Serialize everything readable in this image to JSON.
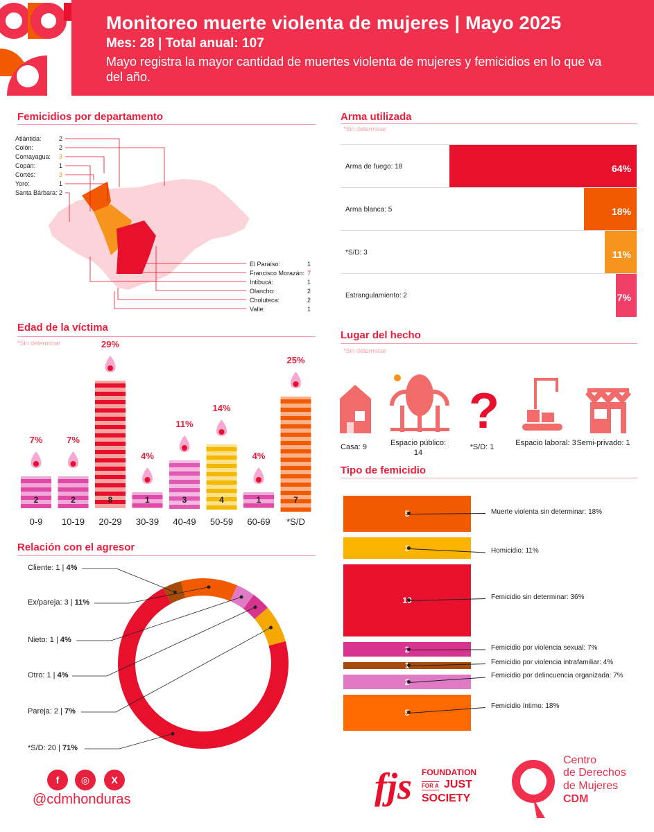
{
  "header": {
    "title": "Monitoreo muerte violenta de mujeres | Mayo 2025",
    "subtitle": "Mes: 28 | Total anual: 107",
    "description": "Mayo registra la mayor cantidad de muertes violenta de mujeres y femicidios en lo que va del año."
  },
  "colors": {
    "brand_red": "#f0304d",
    "red": "#e8112d",
    "orange_dark": "#f25a00",
    "orange": "#f7941d",
    "pink": "#f0406a"
  },
  "sections": {
    "departamento": "Femicidios por departamento",
    "arma": "Arma utilizada",
    "edad": "Edad de la víctima",
    "lugar": "Lugar del hecho",
    "tipo": "Tipo de femicidio",
    "relacion": "Relación con el agresor",
    "sin_determinar": "*Sin determinar"
  },
  "departamentos_left": [
    {
      "name": "Atlántida:",
      "value": "2"
    },
    {
      "name": "Colón:",
      "value": "2"
    },
    {
      "name": "Comayagua:",
      "value": "3"
    },
    {
      "name": "Copán:",
      "value": "1"
    },
    {
      "name": "Cortés:",
      "value": "3"
    },
    {
      "name": "Yoro:",
      "value": "1"
    },
    {
      "name": "Santa Bárbara:",
      "value": "2"
    }
  ],
  "departamentos_right": [
    {
      "name": "El Paraíso:",
      "value": "1"
    },
    {
      "name": "Francisco Morazán:",
      "value": "7"
    },
    {
      "name": "Intibucá:",
      "value": "1"
    },
    {
      "name": "Olancho:",
      "value": "2"
    },
    {
      "name": "Choluteca:",
      "value": "2"
    },
    {
      "name": "Valle:",
      "value": "1"
    }
  ],
  "arma": [
    {
      "label": "Arma de fuego: 18",
      "pct": "64%",
      "value": 64,
      "color": "#e8112d"
    },
    {
      "label": "Arma blanca: 5",
      "pct": "18%",
      "value": 18,
      "color": "#f25a00"
    },
    {
      "label": "*S/D: 3",
      "pct": "11%",
      "value": 11,
      "color": "#f7941d"
    },
    {
      "label": "Estrangulamiento: 2",
      "pct": "7%",
      "value": 7,
      "color": "#f0406a"
    }
  ],
  "edad": [
    {
      "label": "0-9",
      "count": "2",
      "pct": "7%"
    },
    {
      "label": "10-19",
      "count": "2",
      "pct": "7%"
    },
    {
      "label": "20-29",
      "count": "8",
      "pct": "29%"
    },
    {
      "label": "30-39",
      "count": "1",
      "pct": "4%"
    },
    {
      "label": "40-49",
      "count": "3",
      "pct": "11%"
    },
    {
      "label": "50-59",
      "count": "4",
      "pct": "14%"
    },
    {
      "label": "60-69",
      "count": "1",
      "pct": "4%"
    },
    {
      "label": "*S/D",
      "count": "7",
      "pct": "25%"
    }
  ],
  "lugar": [
    {
      "label": "Casa: 9",
      "icon": "house-icon"
    },
    {
      "label": "Espacio público: 14",
      "icon": "tree-icon"
    },
    {
      "label": "*S/D: 1",
      "icon": "question-icon"
    },
    {
      "label": "Espacio laboral: 3",
      "icon": "factory-icon"
    },
    {
      "label": "Semi-privado: 1",
      "icon": "store-icon"
    }
  ],
  "tipo": [
    {
      "num": "5",
      "label": "Muerte violenta sin determinar: 18%",
      "color": "#f25a00"
    },
    {
      "num": "3",
      "label": "Homicidio: 11%",
      "color": "#fbb300"
    },
    {
      "num": "10",
      "label": "Femicidio sin determinar: 36%",
      "color": "#e8112d"
    },
    {
      "num": "2",
      "label": "Femicidio por violencia sexual: 7%",
      "color": "#d6348e"
    },
    {
      "num": "1",
      "label": "Femicidio por violencia intrafamiliar: 4%",
      "color": "#a84a0a"
    },
    {
      "num": "2",
      "label": "Femicidio por delincuencia organizada: 7%",
      "color": "#e07ac4"
    },
    {
      "num": "5",
      "label": "Femicidio íntimo: 18%",
      "color": "#ff6a00"
    }
  ],
  "relacion": [
    {
      "label": "Cliente: 1 | ",
      "pct": "4%"
    },
    {
      "label": "Ex/pareja: 3 | ",
      "pct": "11%"
    },
    {
      "label": "Nieto: 1 | ",
      "pct": "4%"
    },
    {
      "label": "Otro: 1 | ",
      "pct": "4%"
    },
    {
      "label": "Pareja: 2 | ",
      "pct": "7%"
    },
    {
      "label": "*S/D: 20 | ",
      "pct": "71%"
    }
  ],
  "footer": {
    "handle": "@cdmhonduras",
    "fjs_line1": "FOUNDATION",
    "fjs_line2": "FOR A",
    "fjs_line3": "JUST",
    "fjs_line4": "SOCIETY",
    "cdm_line1": "Centro",
    "cdm_line2": "de Derechos",
    "cdm_line3": "de Mujeres",
    "cdm_line4": "CDM"
  },
  "chart_data": [
    {
      "type": "bar",
      "title": "Arma utilizada",
      "categories": [
        "Arma de fuego",
        "Arma blanca",
        "*S/D",
        "Estrangulamiento"
      ],
      "values": [
        18,
        5,
        3,
        2
      ],
      "percentages": [
        64,
        18,
        11,
        7
      ]
    },
    {
      "type": "bar",
      "title": "Edad de la víctima",
      "categories": [
        "0-9",
        "10-19",
        "20-29",
        "30-39",
        "40-49",
        "50-59",
        "60-69",
        "*S/D"
      ],
      "values": [
        2,
        2,
        8,
        1,
        3,
        4,
        1,
        7
      ],
      "percentages": [
        7,
        7,
        29,
        4,
        11,
        14,
        4,
        25
      ]
    },
    {
      "type": "pie",
      "title": "Relación con el agresor",
      "categories": [
        "Cliente",
        "Ex/pareja",
        "Nieto",
        "Otro",
        "Pareja",
        "*S/D"
      ],
      "values": [
        1,
        3,
        1,
        1,
        2,
        20
      ],
      "percentages": [
        4,
        11,
        4,
        4,
        7,
        71
      ]
    },
    {
      "type": "bar",
      "title": "Tipo de femicidio",
      "categories": [
        "Muerte violenta sin determinar",
        "Homicidio",
        "Femicidio sin determinar",
        "Femicidio por violencia sexual",
        "Femicidio por violencia intrafamiliar",
        "Femicidio por delincuencia organizada",
        "Femicidio íntimo"
      ],
      "values": [
        5,
        3,
        10,
        2,
        1,
        2,
        5
      ],
      "percentages": [
        18,
        11,
        36,
        7,
        4,
        7,
        18
      ]
    },
    {
      "type": "bar",
      "title": "Lugar del hecho",
      "categories": [
        "Casa",
        "Espacio público",
        "*S/D",
        "Espacio laboral",
        "Semi-privado"
      ],
      "values": [
        9,
        14,
        1,
        3,
        1
      ]
    }
  ]
}
